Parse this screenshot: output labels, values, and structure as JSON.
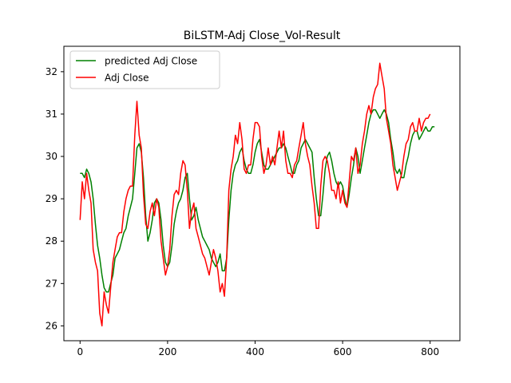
{
  "chart_data": {
    "type": "line",
    "title": "BiLSTM-Adj Close_Vol-Result",
    "xlabel": "",
    "ylabel": "",
    "xlim": [
      -37,
      868
    ],
    "ylim": [
      25.65,
      32.6
    ],
    "grid": false,
    "legend_position": "top-left",
    "x_ticks": [
      {
        "value": 0,
        "label": "0"
      },
      {
        "value": 200,
        "label": "200"
      },
      {
        "value": 400,
        "label": "400"
      },
      {
        "value": 600,
        "label": "600"
      },
      {
        "value": 800,
        "label": "800"
      }
    ],
    "y_ticks": [
      {
        "value": 26,
        "label": "26"
      },
      {
        "value": 27,
        "label": "27"
      },
      {
        "value": 28,
        "label": "28"
      },
      {
        "value": 29,
        "label": "29"
      },
      {
        "value": 30,
        "label": "30"
      },
      {
        "value": 31,
        "label": "31"
      },
      {
        "value": 32,
        "label": "32"
      }
    ],
    "series": [
      {
        "name": "predicted Adj Close",
        "color": "#008000",
        "x_start": 0,
        "x_step": 5,
        "values": [
          29.6,
          29.6,
          29.5,
          29.7,
          29.6,
          29.4,
          29.0,
          28.4,
          27.9,
          27.6,
          27.2,
          26.9,
          26.8,
          26.8,
          27.0,
          27.2,
          27.6,
          27.7,
          27.8,
          28.0,
          28.2,
          28.3,
          28.6,
          28.8,
          29.0,
          29.6,
          30.2,
          30.3,
          30.1,
          29.5,
          28.6,
          28.0,
          28.2,
          28.5,
          28.9,
          29.0,
          28.9,
          28.5,
          27.9,
          27.5,
          27.4,
          27.5,
          27.9,
          28.4,
          28.7,
          28.9,
          29.0,
          29.2,
          29.5,
          29.6,
          29.0,
          28.5,
          28.6,
          28.8,
          28.5,
          28.3,
          28.1,
          28.0,
          27.9,
          27.8,
          27.6,
          27.5,
          27.4,
          27.5,
          27.7,
          27.3,
          27.3,
          27.6,
          28.5,
          29.2,
          29.6,
          29.8,
          29.9,
          30.1,
          30.2,
          29.9,
          29.7,
          29.6,
          29.6,
          29.8,
          30.1,
          30.3,
          30.4,
          30.1,
          29.8,
          29.7,
          29.7,
          29.8,
          29.9,
          30.0,
          30.1,
          30.2,
          30.2,
          30.3,
          30.2,
          30.0,
          29.8,
          29.6,
          29.6,
          29.8,
          29.9,
          30.2,
          30.3,
          30.4,
          30.3,
          30.2,
          30.1,
          29.5,
          29.0,
          28.6,
          28.6,
          29.1,
          29.7,
          30.0,
          30.1,
          29.9,
          29.6,
          29.4,
          29.3,
          29.4,
          29.3,
          29.0,
          28.8,
          29.1,
          29.5,
          29.8,
          30.2,
          30.0,
          29.6,
          29.9,
          30.2,
          30.5,
          30.8,
          31.0,
          31.1,
          31.1,
          31.0,
          30.9,
          31.0,
          31.1,
          31.0,
          30.8,
          30.4,
          30.1,
          29.7,
          29.6,
          29.7,
          29.5,
          29.5,
          29.8,
          30.0,
          30.3,
          30.5,
          30.6,
          30.6,
          30.4,
          30.5,
          30.6,
          30.7,
          30.6,
          30.6,
          30.7,
          30.7
        ]
      },
      {
        "name": "Adj Close",
        "color": "#ff0000",
        "x_start": 0,
        "x_step": 5,
        "values": [
          28.5,
          29.4,
          29.0,
          29.6,
          29.2,
          28.9,
          27.8,
          27.5,
          27.3,
          26.3,
          26.0,
          26.8,
          26.5,
          26.3,
          26.9,
          27.5,
          27.8,
          28.1,
          28.2,
          28.2,
          28.7,
          29.0,
          29.2,
          29.3,
          29.3,
          30.5,
          31.3,
          30.5,
          30.2,
          29.1,
          28.4,
          28.3,
          28.7,
          28.9,
          28.6,
          29.0,
          28.8,
          28.0,
          27.6,
          27.2,
          27.4,
          27.8,
          28.6,
          29.1,
          29.2,
          29.1,
          29.6,
          29.9,
          29.8,
          29.2,
          28.3,
          28.7,
          28.9,
          28.3,
          28.1,
          27.9,
          27.7,
          27.6,
          27.4,
          27.2,
          27.5,
          27.8,
          27.6,
          27.3,
          26.8,
          27.0,
          26.7,
          27.6,
          29.2,
          29.7,
          30.0,
          30.5,
          30.3,
          30.8,
          30.4,
          29.7,
          29.6,
          29.8,
          29.8,
          30.4,
          30.8,
          30.8,
          30.7,
          30.0,
          29.6,
          29.8,
          30.2,
          29.8,
          30.0,
          29.8,
          30.2,
          30.6,
          30.2,
          30.6,
          29.9,
          29.6,
          29.6,
          29.5,
          29.8,
          29.9,
          30.2,
          30.5,
          30.8,
          30.3,
          30.0,
          29.8,
          29.3,
          28.9,
          28.3,
          28.3,
          29.3,
          29.9,
          30.0,
          29.9,
          29.6,
          29.2,
          29.2,
          29.0,
          29.4,
          28.9,
          29.2,
          28.9,
          28.8,
          29.4,
          30.0,
          29.9,
          30.2,
          29.6,
          29.8,
          30.3,
          30.6,
          31.0,
          31.2,
          31.0,
          31.4,
          31.6,
          31.7,
          32.2,
          31.9,
          31.6,
          30.9,
          30.6,
          30.3,
          29.8,
          29.5,
          29.2,
          29.4,
          29.6,
          30.0,
          30.3,
          30.4,
          30.7,
          30.8,
          30.6,
          30.6,
          30.9,
          30.6,
          30.8,
          30.9,
          30.9,
          31.0
        ]
      }
    ]
  }
}
